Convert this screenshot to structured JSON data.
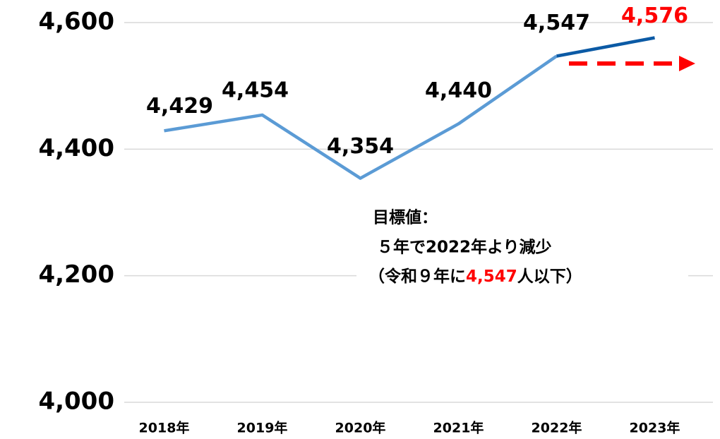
{
  "chart_data": {
    "type": "line",
    "categories": [
      "2018年",
      "2019年",
      "2020年",
      "2021年",
      "2022年",
      "2023年"
    ],
    "values": [
      4429,
      4454,
      4354,
      4440,
      4547,
      4576
    ],
    "value_labels": [
      "4,429",
      "4,454",
      "4,354",
      "4,440",
      "4,547",
      "4,576"
    ],
    "value_label_colors": [
      "#000000",
      "#000000",
      "#000000",
      "#000000",
      "#000000",
      "#ff0000"
    ],
    "color": "#5b9bd5",
    "last_segment_color": "#0b5aa5",
    "ylim": [
      4000,
      4600
    ],
    "yticks": [
      {
        "value": 4000,
        "label": "4,000"
      },
      {
        "value": 4200,
        "label": "4,200"
      },
      {
        "value": 4400,
        "label": "4,400"
      },
      {
        "value": 4600,
        "label": "4,600"
      }
    ],
    "grid": true,
    "annotation": {
      "line1": "目標値：",
      "line2": "５年で2022年より減少",
      "line3_before": "（令和９年に",
      "line3_highlight": "4,547",
      "line3_after": "人以下）",
      "highlight_color": "#ff0000"
    }
  }
}
